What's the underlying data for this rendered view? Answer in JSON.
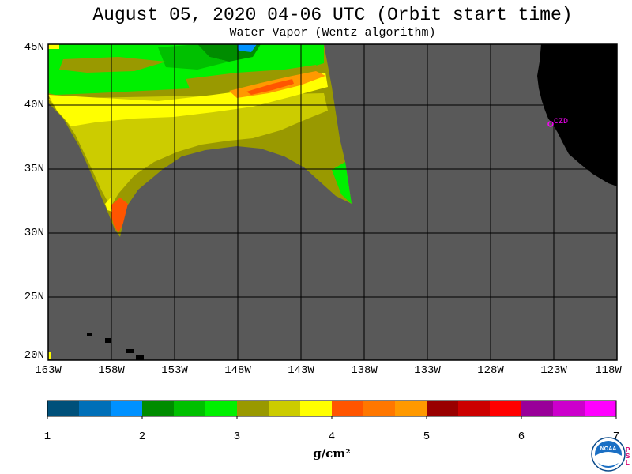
{
  "title": "August 05, 2020  04-06 UTC  (Orbit start time)",
  "subtitle": "Water Vapor (Wentz algorithm)",
  "map": {
    "lat_labels": [
      "45N",
      "40N",
      "35N",
      "30N",
      "25N",
      "20N"
    ],
    "lon_labels": [
      "163W",
      "158W",
      "153W",
      "148W",
      "143W",
      "138W",
      "133W",
      "128W",
      "123W",
      "118W"
    ],
    "station_label": "CZD",
    "colors": {
      "no_data": "#595959",
      "land": "#000000",
      "gridline": "#000000",
      "station": "#ff00ff"
    }
  },
  "colorbar": {
    "ticks": [
      "1",
      "2",
      "3",
      "4",
      "5",
      "6",
      "7"
    ],
    "unit": "g/cm²",
    "colors": [
      "#00507a",
      "#006fb8",
      "#0091ff",
      "#008c00",
      "#00c000",
      "#00f000",
      "#999900",
      "#cccc00",
      "#ffff00",
      "#ff5500",
      "#ff7700",
      "#ff9900",
      "#990000",
      "#cc0000",
      "#ff0000",
      "#990099",
      "#cc00cc",
      "#ff00ff"
    ]
  },
  "logo": {
    "text": "NOAA",
    "side_text": "P S L"
  }
}
